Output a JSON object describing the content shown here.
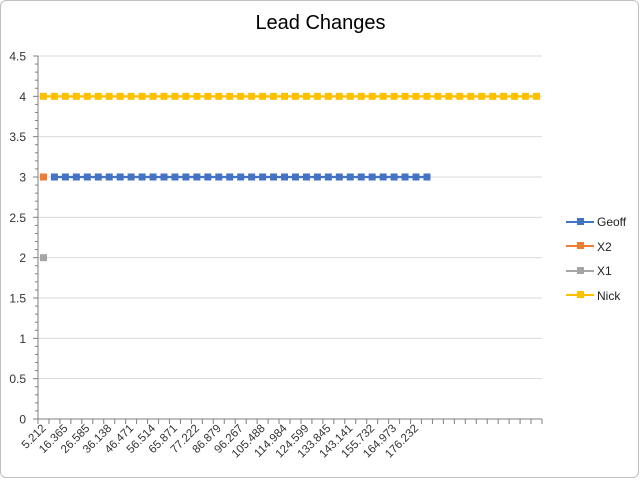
{
  "chart_data": {
    "type": "line",
    "title": "Lead Changes",
    "xlabel": "",
    "ylabel": "",
    "ylim": [
      0,
      4.5
    ],
    "yticks": [
      0,
      0.5,
      1,
      1.5,
      2,
      2.5,
      3,
      3.5,
      4,
      4.5
    ],
    "x_tick_labels": [
      "5.212",
      "16.365",
      "26.585",
      "36.138",
      "46.471",
      "56.514",
      "65.871",
      "77.222",
      "86.879",
      "96.267",
      "105.488",
      "114.984",
      "124.599",
      "133.845",
      "143.141",
      "155.732",
      "164.973",
      "176.232"
    ],
    "category_count": 46,
    "grid": true,
    "legend_position": "right",
    "series": [
      {
        "name": "Geoff",
        "color": "#4472C4",
        "start_index": 1,
        "end_index": 35,
        "value": 3
      },
      {
        "name": "X2",
        "color": "#ED7D31",
        "start_index": 0,
        "end_index": 0,
        "value": 3
      },
      {
        "name": "X1",
        "color": "#A5A5A5",
        "start_index": 0,
        "end_index": 0,
        "value": 2
      },
      {
        "name": "Nick",
        "color": "#FFC000",
        "start_index": 0,
        "end_index": 45,
        "value": 4
      }
    ]
  }
}
